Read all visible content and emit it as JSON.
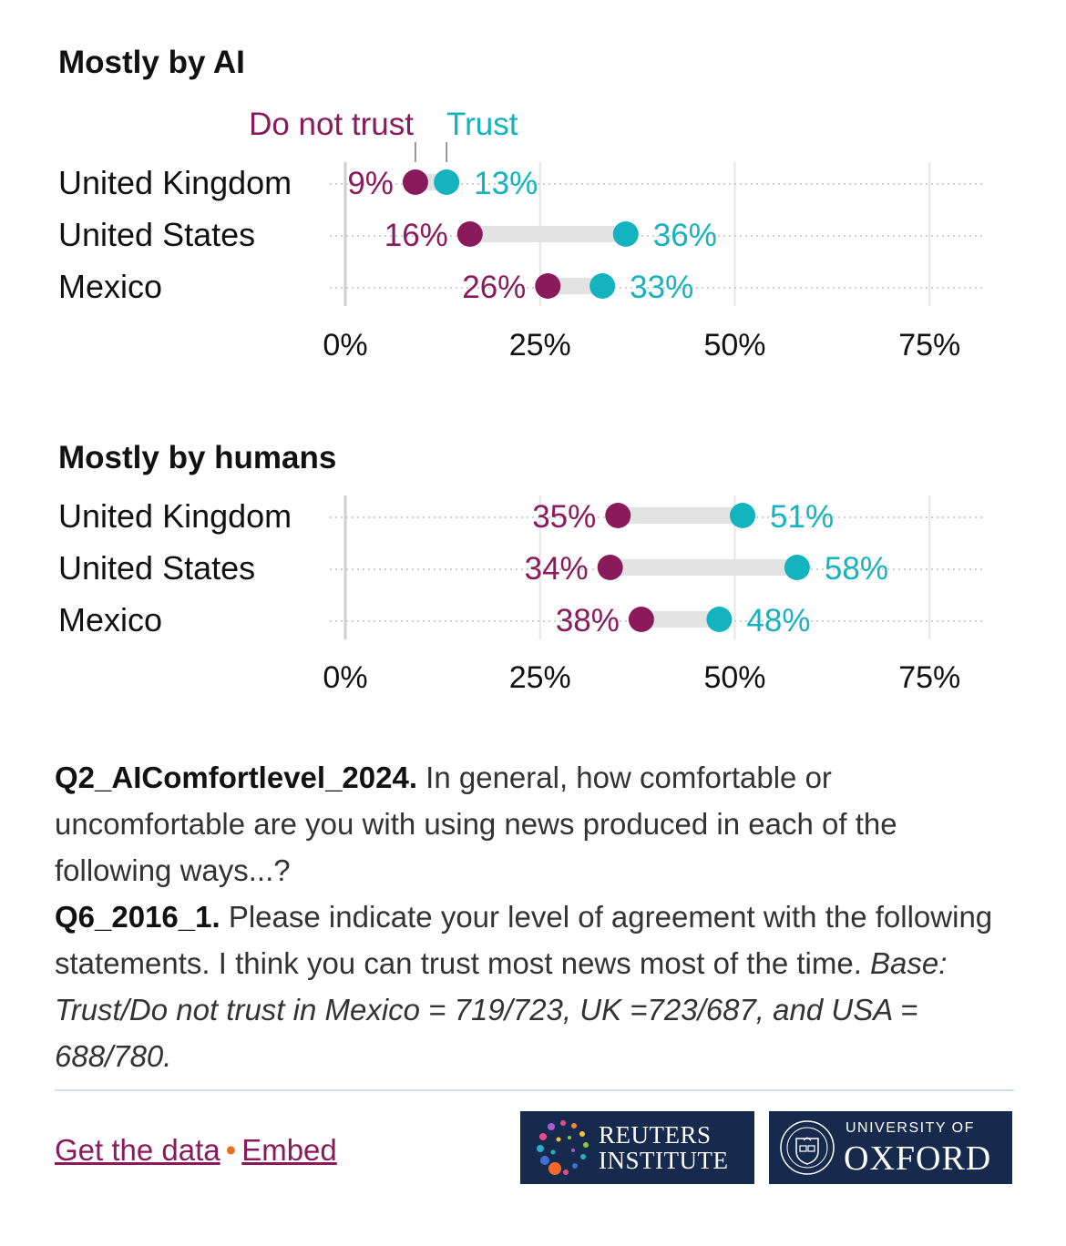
{
  "colors": {
    "do_not_trust": "#8b1a5c",
    "trust": "#13b3bf",
    "connector": "#e3e3e3",
    "grid": "#d9d9d9"
  },
  "chart_data": [
    {
      "type": "dumbbell",
      "title": "Mostly by AI",
      "legend": {
        "left": "Do not trust",
        "right": "Trust"
      },
      "categories": [
        "United Kingdom",
        "United States",
        "Mexico"
      ],
      "series": [
        {
          "name": "Do not trust",
          "values": [
            9,
            16,
            26
          ]
        },
        {
          "name": "Trust",
          "values": [
            13,
            36,
            33
          ]
        }
      ],
      "labels": {
        "do_not_trust": [
          "9%",
          "16%",
          "26%"
        ],
        "trust": [
          "13%",
          "36%",
          "33%"
        ]
      },
      "xlim": [
        0,
        82
      ],
      "xticks": [
        0,
        25,
        50,
        75
      ],
      "xtick_labels": [
        "0%",
        "25%",
        "50%",
        "75%"
      ]
    },
    {
      "type": "dumbbell",
      "title": "Mostly by humans",
      "categories": [
        "United Kingdom",
        "United States",
        "Mexico"
      ],
      "series": [
        {
          "name": "Do not trust",
          "values": [
            35,
            34,
            38
          ]
        },
        {
          "name": "Trust",
          "values": [
            51,
            58,
            48
          ]
        }
      ],
      "labels": {
        "do_not_trust": [
          "35%",
          "34%",
          "38%"
        ],
        "trust": [
          "51%",
          "58%",
          "48%"
        ]
      },
      "xlim": [
        0,
        82
      ],
      "xticks": [
        0,
        25,
        50,
        75
      ],
      "xtick_labels": [
        "0%",
        "25%",
        "50%",
        "75%"
      ]
    }
  ],
  "notes": {
    "q2_code": "Q2_AIComfortlevel_2024.",
    "q2_text": " In general, how comfortable or uncomfortable are you with using news produced in each of the following ways...?",
    "q6_code": "Q6_2016_1.",
    "q6_text": " Please indicate your level of agreement with the following statements. I think you can trust most news most of the time. ",
    "base": "Base: Trust/Do not trust in Mexico = 719/723, UK =723/687, and USA = 688/780."
  },
  "footer": {
    "get_data": "Get the data",
    "separator": "•",
    "embed": "Embed",
    "reuters_line1": "REUTERS",
    "reuters_line2": "INSTITUTE",
    "oxford_line1": "UNIVERSITY OF",
    "oxford_line2": "OXFORD"
  }
}
